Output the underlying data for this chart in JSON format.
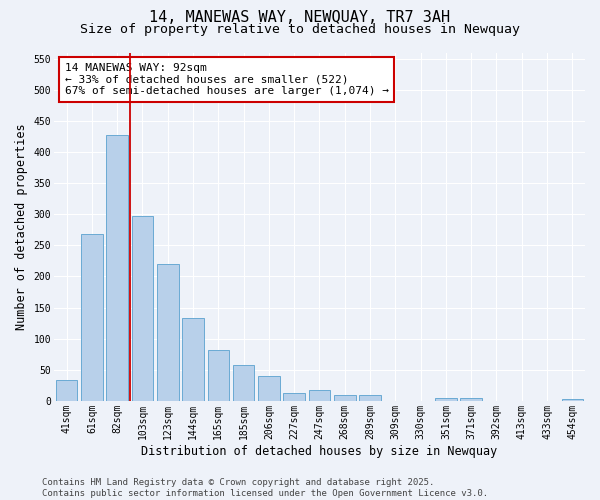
{
  "title": "14, MANEWAS WAY, NEWQUAY, TR7 3AH",
  "subtitle": "Size of property relative to detached houses in Newquay",
  "xlabel": "Distribution of detached houses by size in Newquay",
  "ylabel": "Number of detached properties",
  "categories": [
    "41sqm",
    "61sqm",
    "82sqm",
    "103sqm",
    "123sqm",
    "144sqm",
    "165sqm",
    "185sqm",
    "206sqm",
    "227sqm",
    "247sqm",
    "268sqm",
    "289sqm",
    "309sqm",
    "330sqm",
    "351sqm",
    "371sqm",
    "392sqm",
    "413sqm",
    "433sqm",
    "454sqm"
  ],
  "values": [
    33,
    268,
    428,
    298,
    220,
    133,
    82,
    58,
    40,
    13,
    18,
    9,
    9,
    0,
    0,
    5,
    4,
    0,
    0,
    0,
    3
  ],
  "bar_color": "#b8d0ea",
  "bar_edge_color": "#6aaad4",
  "vline_x_index": 2,
  "vline_color": "#cc0000",
  "annotation_text": "14 MANEWAS WAY: 92sqm\n← 33% of detached houses are smaller (522)\n67% of semi-detached houses are larger (1,074) →",
  "annotation_box_edgecolor": "#cc0000",
  "annotation_bg_color": "#ffffff",
  "ylim": [
    0,
    560
  ],
  "yticks": [
    0,
    50,
    100,
    150,
    200,
    250,
    300,
    350,
    400,
    450,
    500,
    550
  ],
  "footer_text": "Contains HM Land Registry data © Crown copyright and database right 2025.\nContains public sector information licensed under the Open Government Licence v3.0.",
  "bg_color": "#eef2f9",
  "plot_bg_color": "#eef2f9",
  "title_fontsize": 11,
  "subtitle_fontsize": 9.5,
  "axis_label_fontsize": 8.5,
  "tick_fontsize": 7,
  "annotation_fontsize": 8,
  "footer_fontsize": 6.5
}
